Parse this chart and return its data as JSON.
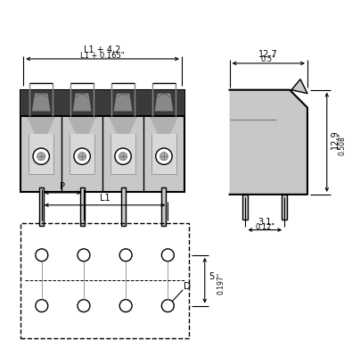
{
  "bg_color": "#ffffff",
  "line_color": "#000000",
  "gray_fill": "#c8c8c8",
  "dark_fill": "#3a3a3a",
  "dim_L1_4_2": "L1 + 4,2",
  "dim_L1_0165": "L1 + 0.165\"",
  "dim_12_7": "12,7",
  "dim_0_5": "0.5\"",
  "dim_12_9": "12,9",
  "dim_0_508": "0.508\"",
  "dim_3_1": "3,1",
  "dim_0_12": "0.12\"",
  "dim_L1": "L1",
  "dim_P": "P",
  "dim_D": "D",
  "dim_5": "5",
  "dim_0_197": "0.197\""
}
